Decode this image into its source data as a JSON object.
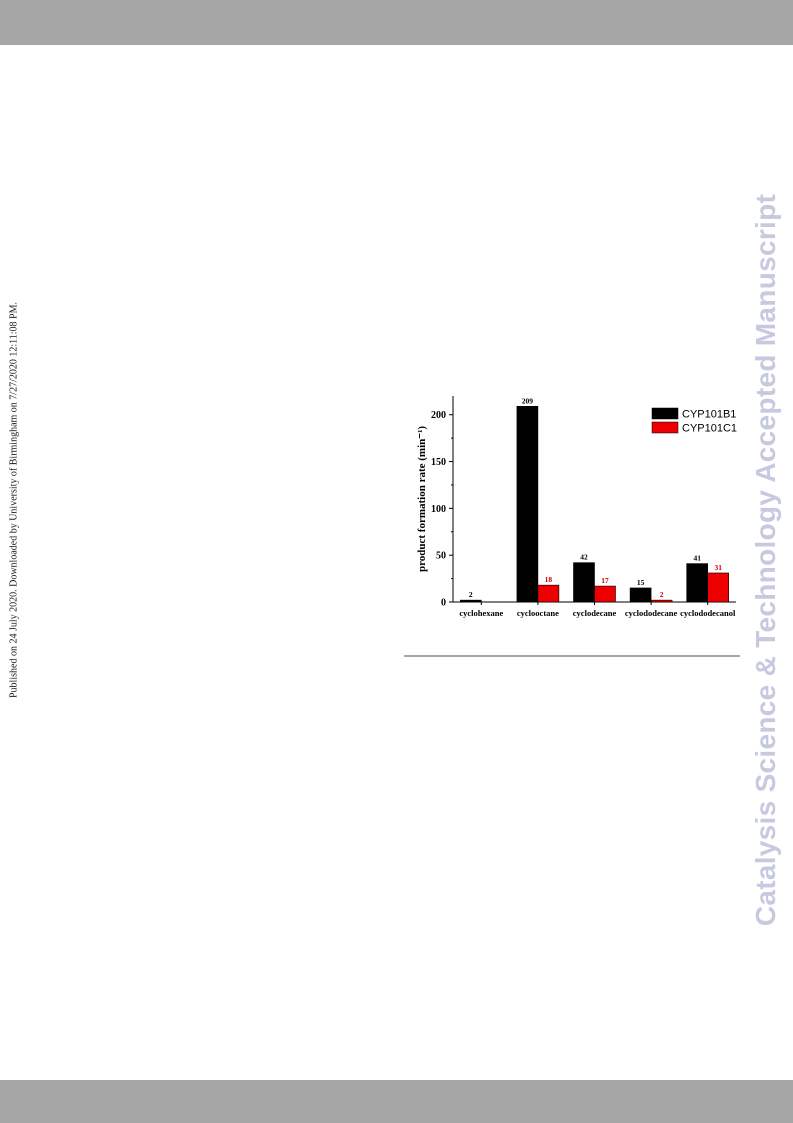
{
  "header_bar": {},
  "footer_bar": {},
  "side_note": "Published on 24 July 2020. Downloaded by University of Birmingham on 7/27/2020 12:11:08 PM.",
  "watermark": "Catalysis Science & Technology Accepted Manuscript",
  "chart_data": {
    "type": "bar",
    "categories": [
      "cyclohexane",
      "cyclooctane",
      "cyclodecane",
      "cyclododecane",
      "cyclododecanol"
    ],
    "series": [
      {
        "name": "CYP101B1",
        "color": "#000000",
        "values": [
          2,
          209,
          42,
          15,
          41
        ],
        "labels": [
          "2",
          "209",
          "42",
          "15",
          "41"
        ]
      },
      {
        "name": "CYP101C1",
        "color": "#ee0000",
        "values": [
          null,
          18,
          17,
          2,
          31
        ],
        "labels": [
          "",
          "18",
          "17",
          "2",
          "31"
        ]
      }
    ],
    "ylabel": "product formation rate (min⁻¹)",
    "ylim": [
      0,
      220
    ],
    "yticks": [
      0,
      50,
      100,
      150,
      200
    ],
    "grid": false,
    "legend": "top-right",
    "label_colors": {
      "CYP101B1": "#000000",
      "CYP101C1": "#cc0000"
    }
  }
}
